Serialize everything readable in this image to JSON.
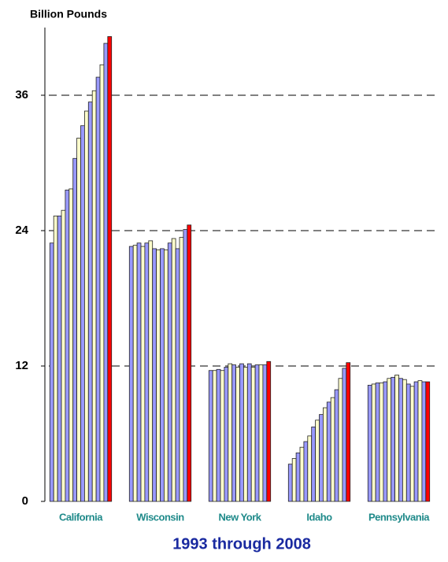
{
  "chart_data": {
    "type": "bar",
    "title": "Billion Pounds",
    "x_label": "1993 through 2008",
    "categories": [
      "California",
      "Wisconsin",
      "New York",
      "Idaho",
      "Pennsylvania"
    ],
    "series": [
      {
        "color": "#9999ff",
        "values": [
          22.9,
          22.6,
          11.6,
          3.3,
          10.3
        ]
      },
      {
        "color": "#ffffcc",
        "values": [
          25.3,
          22.7,
          11.6,
          3.8,
          10.4
        ]
      },
      {
        "color": "#9999ff",
        "values": [
          25.3,
          22.9,
          11.7,
          4.3,
          10.5
        ]
      },
      {
        "color": "#ffffcc",
        "values": [
          25.8,
          22.6,
          11.6,
          4.8,
          10.5
        ]
      },
      {
        "color": "#9999ff",
        "values": [
          27.6,
          22.9,
          11.9,
          5.3,
          10.6
        ]
      },
      {
        "color": "#ffffcc",
        "values": [
          27.7,
          23.1,
          12.2,
          5.8,
          10.9
        ]
      },
      {
        "color": "#9999ff",
        "values": [
          30.4,
          22.4,
          12.1,
          6.6,
          11.0
        ]
      },
      {
        "color": "#ffffcc",
        "values": [
          32.2,
          22.3,
          11.9,
          7.2,
          11.2
        ]
      },
      {
        "color": "#9999ff",
        "values": [
          33.3,
          22.4,
          12.2,
          7.7,
          10.9
        ]
      },
      {
        "color": "#ffffcc",
        "values": [
          34.6,
          22.3,
          11.9,
          8.3,
          10.8
        ]
      },
      {
        "color": "#9999ff",
        "values": [
          35.4,
          22.9,
          12.2,
          8.8,
          10.4
        ]
      },
      {
        "color": "#ffffcc",
        "values": [
          36.4,
          23.3,
          11.9,
          9.2,
          10.2
        ]
      },
      {
        "color": "#9999ff",
        "values": [
          37.6,
          22.4,
          12.1,
          9.9,
          10.6
        ]
      },
      {
        "color": "#ffffcc",
        "values": [
          38.7,
          23.4,
          12.1,
          10.9,
          10.7
        ]
      },
      {
        "color": "#9999ff",
        "values": [
          40.6,
          24.1,
          12.1,
          11.8,
          10.6
        ]
      },
      {
        "color": "#ff0000",
        "values": [
          41.2,
          24.5,
          12.4,
          12.3,
          10.6
        ]
      }
    ],
    "ylim": [
      0,
      42
    ],
    "yticks": [
      0,
      12,
      24,
      36
    ],
    "grid": true
  }
}
